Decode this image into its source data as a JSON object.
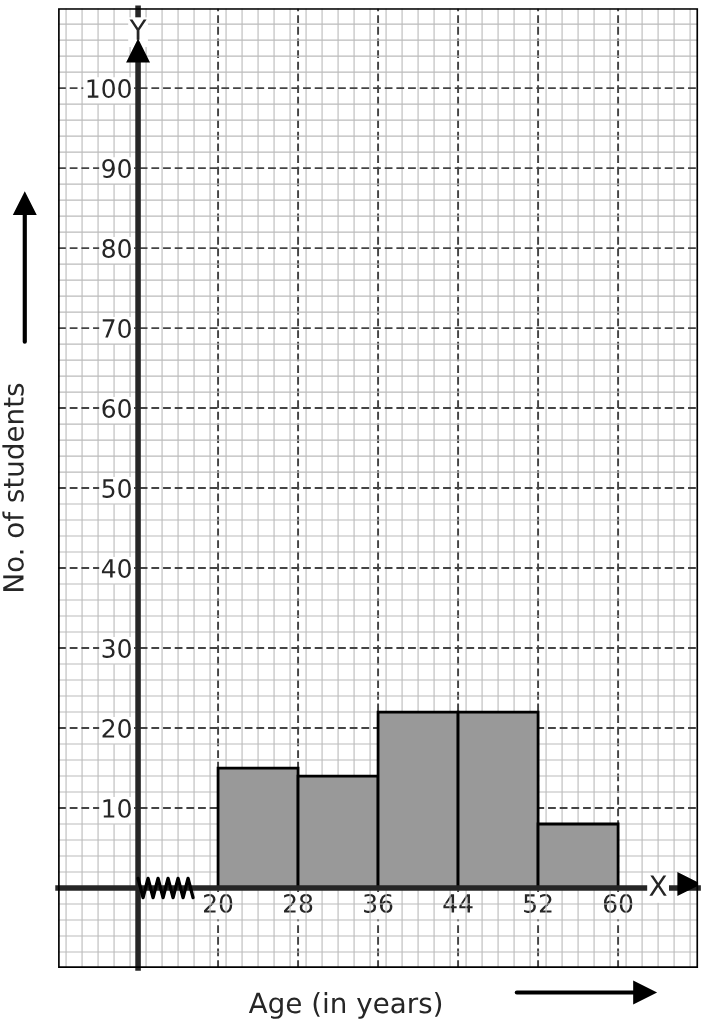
{
  "chart_data": {
    "type": "histogram",
    "xlabel": "Age (in years)",
    "ylabel": "No. of students",
    "bins": [
      20,
      28,
      36,
      44,
      52,
      60
    ],
    "values": [
      15,
      14,
      22,
      22,
      8
    ],
    "color": "#999999",
    "xlim": [
      4,
      68
    ],
    "ylim": [
      -10,
      110
    ],
    "xticks": [
      20,
      28,
      36,
      44,
      52,
      60
    ],
    "yticks": [
      10,
      20,
      30,
      40,
      50,
      60,
      70,
      80,
      90,
      100
    ],
    "grid": true,
    "annotations": [
      {
        "text": "X",
        "x": 64,
        "y": 0
      },
      {
        "text": "Y",
        "x": 12,
        "y": 107
      }
    ]
  }
}
